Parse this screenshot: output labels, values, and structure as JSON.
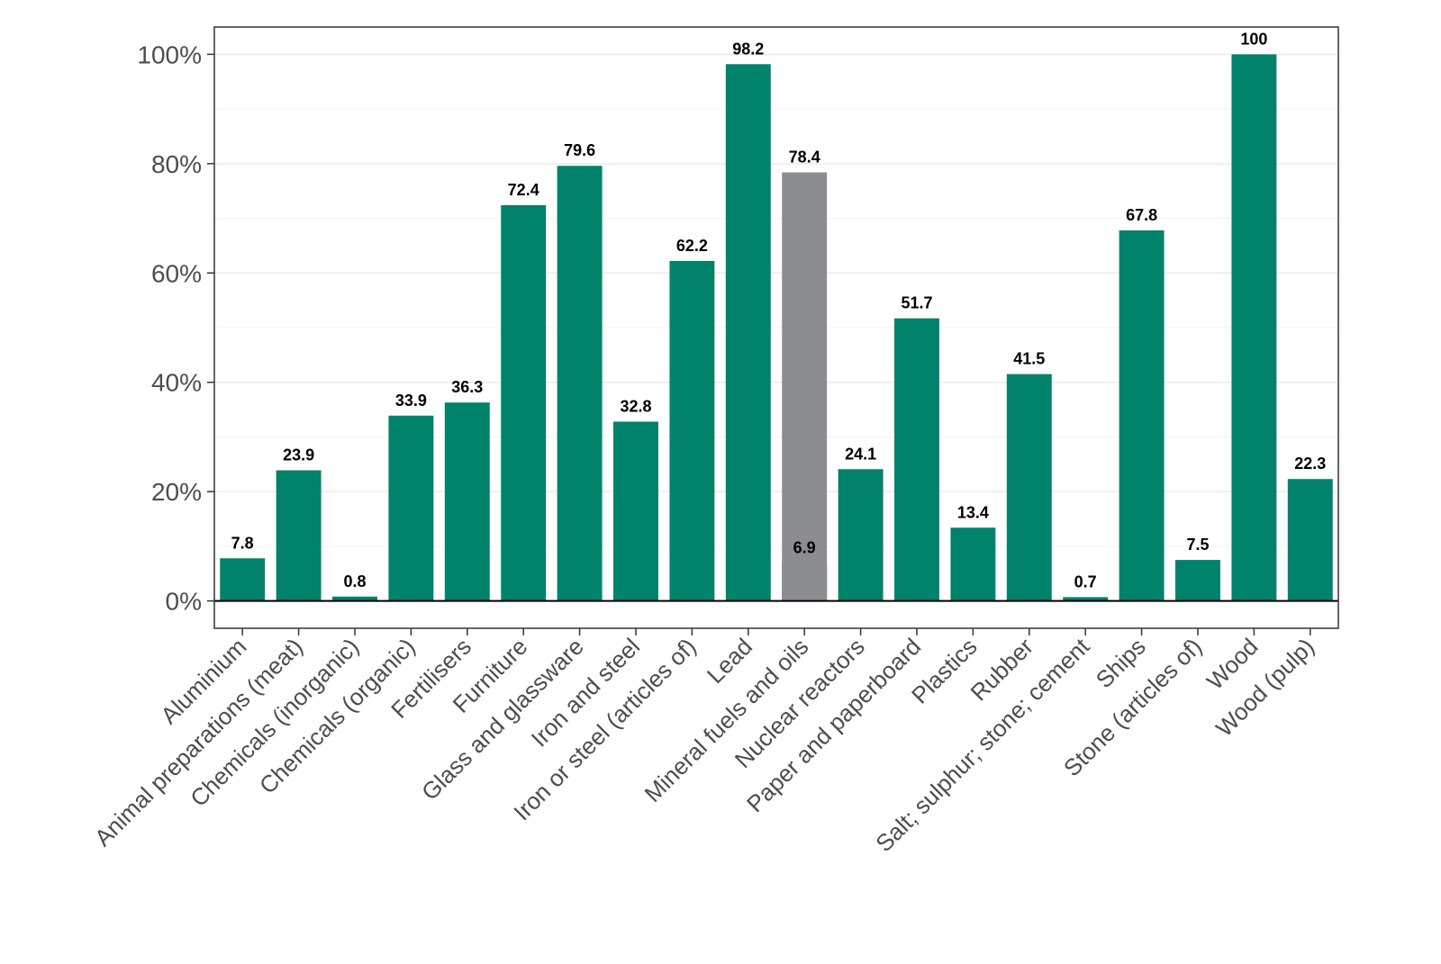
{
  "chart_data": {
    "type": "bar",
    "title": "",
    "xlabel": "",
    "ylabel": "",
    "ylim": [
      -5,
      105
    ],
    "yticks": [
      0,
      20,
      40,
      60,
      80,
      100
    ],
    "ytick_labels": [
      "0%",
      "20%",
      "40%",
      "60%",
      "80%",
      "100%"
    ],
    "grid": true,
    "categories": [
      "Aluminium",
      "Animal preparations (meat)",
      "Chemicals (inorganic)",
      "Chemicals (organic)",
      "Fertilisers",
      "Furniture",
      "Glass and glassware",
      "Iron and steel",
      "Iron or steel (articles of)",
      "Lead",
      "Mineral fuels and oils",
      "Nuclear reactors",
      "Paper and paperboard",
      "Plastics",
      "Rubber",
      "Salt; sulphur; stone; cement",
      "Ships",
      "Stone (articles of)",
      "Wood",
      "Wood (pulp)"
    ],
    "series": [
      {
        "color": "#00826b",
        "values": [
          7.8,
          23.9,
          0.8,
          33.9,
          36.3,
          72.4,
          79.6,
          32.8,
          62.2,
          98.2,
          6.9,
          24.1,
          51.7,
          13.4,
          41.5,
          0.7,
          67.8,
          7.5,
          100,
          22.3
        ],
        "labels": [
          "7.8",
          "23.9",
          "0.8",
          "33.9",
          "36.3",
          "72.4",
          "79.6",
          "32.8",
          "62.2",
          "98.2",
          "6.9",
          "24.1",
          "51.7",
          "13.4",
          "41.5",
          "0.7",
          "67.8",
          "7.5",
          "100",
          "22.3"
        ]
      },
      {
        "color": "#8c8d91",
        "values": [
          null,
          null,
          null,
          null,
          null,
          null,
          null,
          null,
          null,
          null,
          78.4,
          null,
          null,
          null,
          null,
          null,
          null,
          null,
          null,
          null
        ],
        "labels": [
          null,
          null,
          null,
          null,
          null,
          null,
          null,
          null,
          null,
          null,
          "78.4",
          null,
          null,
          null,
          null,
          null,
          null,
          null,
          null,
          null
        ]
      }
    ]
  }
}
